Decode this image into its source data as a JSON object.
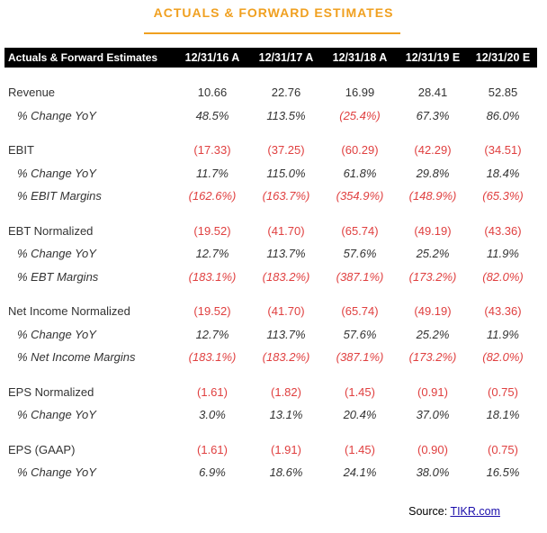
{
  "title": "ACTUALS & FORWARD ESTIMATES",
  "header": {
    "label": "Actuals & Forward Estimates",
    "periods": [
      "12/31/16 A",
      "12/31/17 A",
      "12/31/18 A",
      "12/31/19 E",
      "12/31/20 E"
    ]
  },
  "groups": [
    {
      "rows": [
        {
          "label": "Revenue",
          "sub": false,
          "values": [
            "10.66",
            "22.76",
            "16.99",
            "28.41",
            "52.85"
          ]
        },
        {
          "label": "% Change YoY",
          "sub": true,
          "values": [
            "48.5%",
            "113.5%",
            "(25.4%)",
            "67.3%",
            "86.0%"
          ]
        }
      ]
    },
    {
      "rows": [
        {
          "label": "EBIT",
          "sub": false,
          "values": [
            "(17.33)",
            "(37.25)",
            "(60.29)",
            "(42.29)",
            "(34.51)"
          ]
        },
        {
          "label": "% Change YoY",
          "sub": true,
          "values": [
            "11.7%",
            "115.0%",
            "61.8%",
            "29.8%",
            "18.4%"
          ]
        },
        {
          "label": "% EBIT Margins",
          "sub": true,
          "values": [
            "(162.6%)",
            "(163.7%)",
            "(354.9%)",
            "(148.9%)",
            "(65.3%)"
          ]
        }
      ]
    },
    {
      "rows": [
        {
          "label": "EBT Normalized",
          "sub": false,
          "values": [
            "(19.52)",
            "(41.70)",
            "(65.74)",
            "(49.19)",
            "(43.36)"
          ]
        },
        {
          "label": "% Change YoY",
          "sub": true,
          "values": [
            "12.7%",
            "113.7%",
            "57.6%",
            "25.2%",
            "11.9%"
          ]
        },
        {
          "label": "% EBT Margins",
          "sub": true,
          "values": [
            "(183.1%)",
            "(183.2%)",
            "(387.1%)",
            "(173.2%)",
            "(82.0%)"
          ]
        }
      ]
    },
    {
      "rows": [
        {
          "label": "Net Income Normalized",
          "sub": false,
          "values": [
            "(19.52)",
            "(41.70)",
            "(65.74)",
            "(49.19)",
            "(43.36)"
          ]
        },
        {
          "label": "% Change YoY",
          "sub": true,
          "values": [
            "12.7%",
            "113.7%",
            "57.6%",
            "25.2%",
            "11.9%"
          ]
        },
        {
          "label": "% Net Income Margins",
          "sub": true,
          "values": [
            "(183.1%)",
            "(183.2%)",
            "(387.1%)",
            "(173.2%)",
            "(82.0%)"
          ]
        }
      ]
    },
    {
      "rows": [
        {
          "label": "EPS Normalized",
          "sub": false,
          "values": [
            "(1.61)",
            "(1.82)",
            "(1.45)",
            "(0.91)",
            "(0.75)"
          ]
        },
        {
          "label": "% Change YoY",
          "sub": true,
          "values": [
            "3.0%",
            "13.1%",
            "20.4%",
            "37.0%",
            "18.1%"
          ]
        }
      ]
    },
    {
      "rows": [
        {
          "label": "EPS (GAAP)",
          "sub": false,
          "values": [
            "(1.61)",
            "(1.91)",
            "(1.45)",
            "(0.90)",
            "(0.75)"
          ]
        },
        {
          "label": "% Change YoY",
          "sub": true,
          "values": [
            "6.9%",
            "18.6%",
            "24.1%",
            "38.0%",
            "16.5%"
          ]
        }
      ]
    }
  ],
  "source": {
    "prefix": "Source: ",
    "link_text": "TIKR.com"
  },
  "colors": {
    "accent": "#f0a020",
    "negative": "#e04040",
    "header_bg": "#000000"
  }
}
